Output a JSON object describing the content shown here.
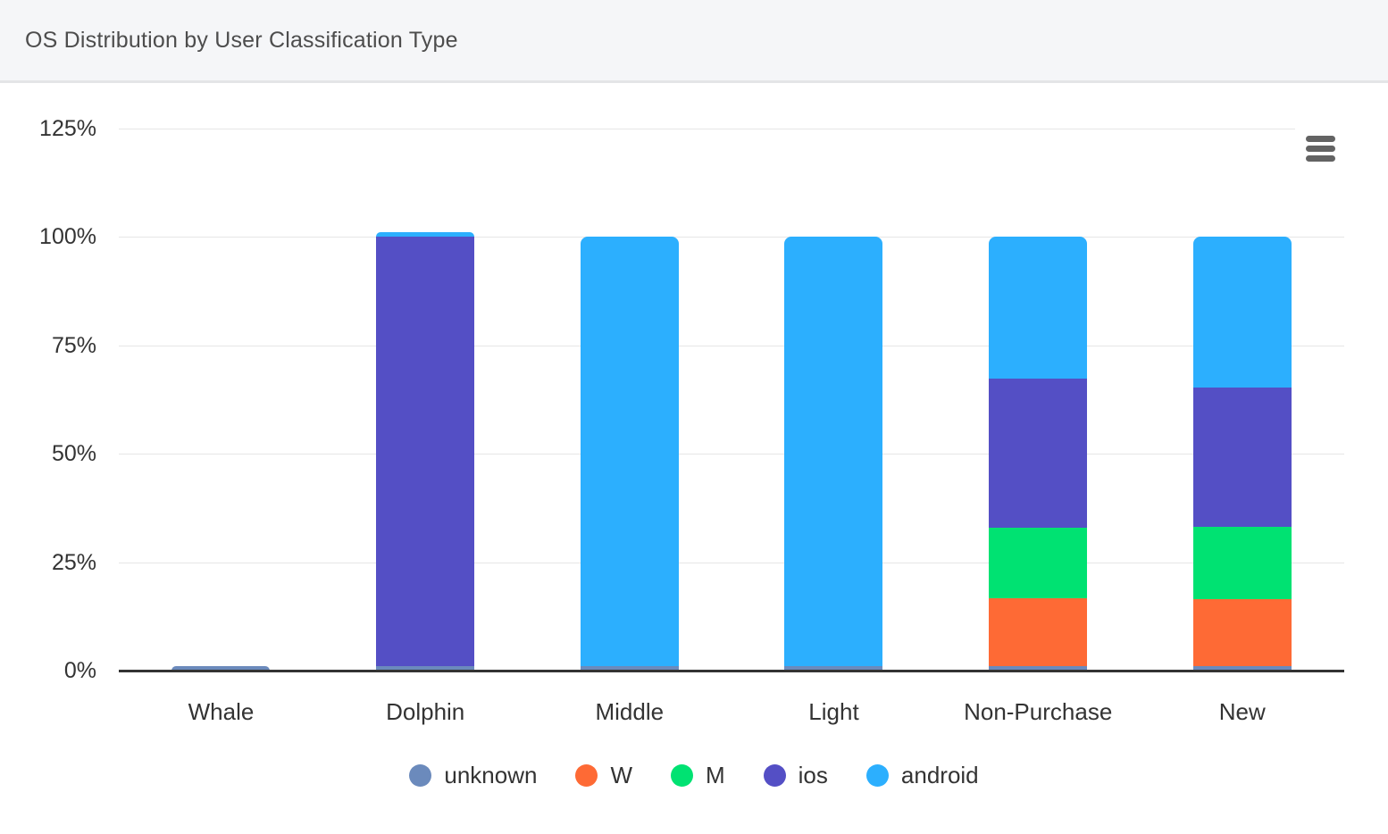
{
  "header": {
    "title": "OS Distribution by User Classification Type"
  },
  "menu": {
    "tooltip": "Chart context menu"
  },
  "colors": {
    "header_bg": "#f5f6f8",
    "header_border": "#e4e5e7",
    "grid": "#e6e6e6",
    "axis_line": "#333333",
    "label_text": "#333333",
    "title_text": "#4d4d4d",
    "menu_icon": "#636363"
  },
  "chart_data": {
    "type": "bar",
    "stacked": true,
    "orientation": "vertical",
    "title": "OS Distribution by User Classification Type",
    "xlabel": "",
    "ylabel": "",
    "categories": [
      "Whale",
      "Dolphin",
      "Middle",
      "Light",
      "Non-Purchase",
      "New"
    ],
    "series": [
      {
        "name": "unknown",
        "color": "#6b8abc",
        "values": [
          1,
          1,
          1,
          1,
          1,
          1
        ]
      },
      {
        "name": "W",
        "color": "#fe6a35",
        "values": [
          0,
          0,
          0,
          0,
          15.7,
          15.5
        ]
      },
      {
        "name": "M",
        "color": "#00e272",
        "values": [
          0,
          0,
          0,
          0,
          16.3,
          16.6
        ]
      },
      {
        "name": "ios",
        "color": "#544fc5",
        "values": [
          0,
          99,
          0,
          0,
          34.3,
          32.1
        ]
      },
      {
        "name": "android",
        "color": "#2caffe",
        "values": [
          0,
          1,
          99,
          99,
          32.7,
          34.8
        ]
      }
    ],
    "stack_totals": [
      1,
      101,
      100,
      100,
      100,
      100
    ],
    "ylim": [
      0,
      125
    ],
    "yticks": [
      0,
      25,
      50,
      75,
      100,
      125
    ],
    "ytick_suffix": "%",
    "grid": true,
    "legend_position": "bottom",
    "legend_marker": "circle"
  }
}
